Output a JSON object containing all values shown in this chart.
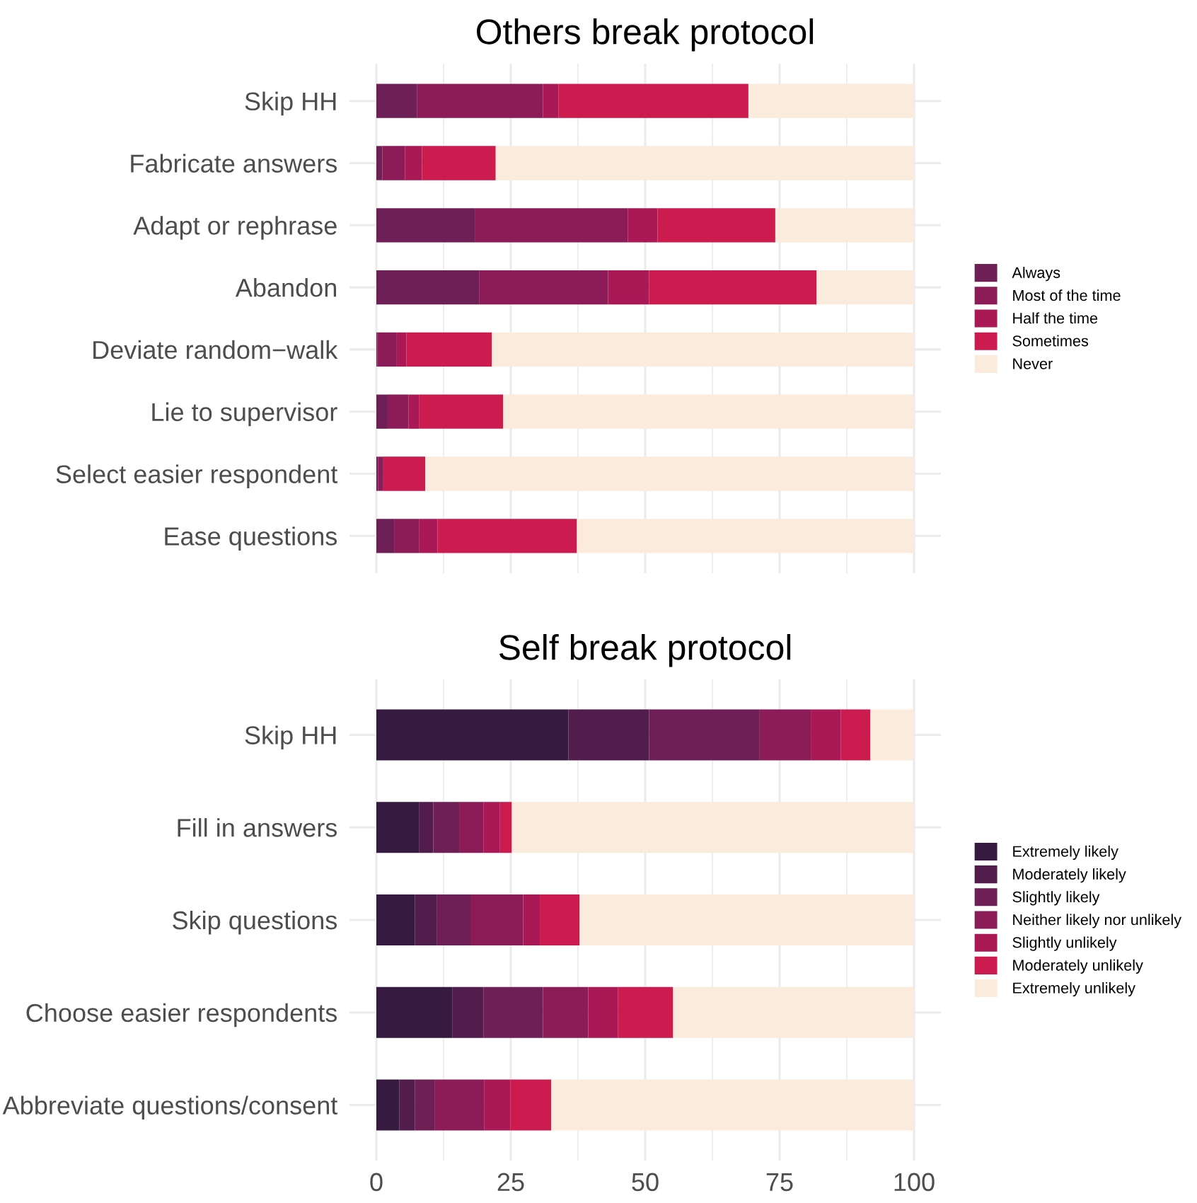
{
  "chart_data": [
    {
      "type": "bar",
      "orientation": "horizontal",
      "stacked": true,
      "title": "Others break protocol",
      "categories": [
        "Skip HH",
        "Fabricate answers",
        "Adapt or rephrase",
        "Abandon",
        "Deviate random−walk",
        "Lie to supervisor",
        "Select easier respondent",
        "Ease questions"
      ],
      "series": [
        {
          "name": "Always",
          "color": "#6d1f56",
          "values": [
            7.6,
            1.1,
            18.3,
            19.1,
            0.2,
            2.1,
            0.3,
            3.3
          ]
        },
        {
          "name": "Most of the time",
          "color": "#8c1c58",
          "values": [
            23.4,
            4.2,
            28.5,
            24.0,
            3.6,
            3.9,
            1.0,
            4.7
          ]
        },
        {
          "name": "Half the time",
          "color": "#ab1856",
          "values": [
            2.9,
            3.2,
            5.5,
            7.6,
            1.8,
            2.0,
            0.0,
            3.4
          ]
        },
        {
          "name": "Sometimes",
          "color": "#cb1b4f",
          "values": [
            35.3,
            13.7,
            21.9,
            31.2,
            15.9,
            15.6,
            7.8,
            25.9
          ]
        },
        {
          "name": "Never",
          "color": "#faebdd",
          "values": [
            30.8,
            77.8,
            25.8,
            18.1,
            78.5,
            76.4,
            90.9,
            62.7
          ]
        }
      ],
      "xlim": [
        -5,
        105
      ],
      "xticks": [
        0,
        25,
        50,
        75,
        100
      ],
      "tick_labels": "y",
      "grid": true,
      "legend": "right"
    },
    {
      "type": "bar",
      "orientation": "horizontal",
      "stacked": true,
      "title": "Self break protocol",
      "categories": [
        "Skip HH",
        "Fill in answers",
        "Skip questions",
        "Choose easier respondents",
        "Abbreviate questions/consent"
      ],
      "series": [
        {
          "name": "Extremely likely",
          "color": "#361a3f",
          "values": [
            35.7,
            8.0,
            7.2,
            14.1,
            4.3
          ]
        },
        {
          "name": "Moderately likely",
          "color": "#521d4d",
          "values": [
            15.0,
            2.6,
            4.0,
            5.8,
            2.9
          ]
        },
        {
          "name": "Slightly likely",
          "color": "#6d1f56",
          "values": [
            20.6,
            4.8,
            6.3,
            11.1,
            3.7
          ]
        },
        {
          "name": "Neither likely nor unlikely",
          "color": "#8c1c58",
          "values": [
            9.5,
            4.5,
            9.8,
            8.4,
            9.2
          ]
        },
        {
          "name": "Slightly unlikely",
          "color": "#ab1856",
          "values": [
            5.6,
            3.1,
            3.1,
            5.5,
            4.8
          ]
        },
        {
          "name": "Moderately unlikely",
          "color": "#cb1b4f",
          "values": [
            5.5,
            2.2,
            7.4,
            10.3,
            7.6
          ]
        },
        {
          "name": "Extremely unlikely",
          "color": "#faebdd",
          "values": [
            8.1,
            74.8,
            62.2,
            44.8,
            67.5
          ]
        }
      ],
      "xlim": [
        -5,
        105
      ],
      "xticks": [
        0,
        25,
        50,
        75,
        100
      ],
      "grid": true,
      "legend": "right"
    }
  ]
}
